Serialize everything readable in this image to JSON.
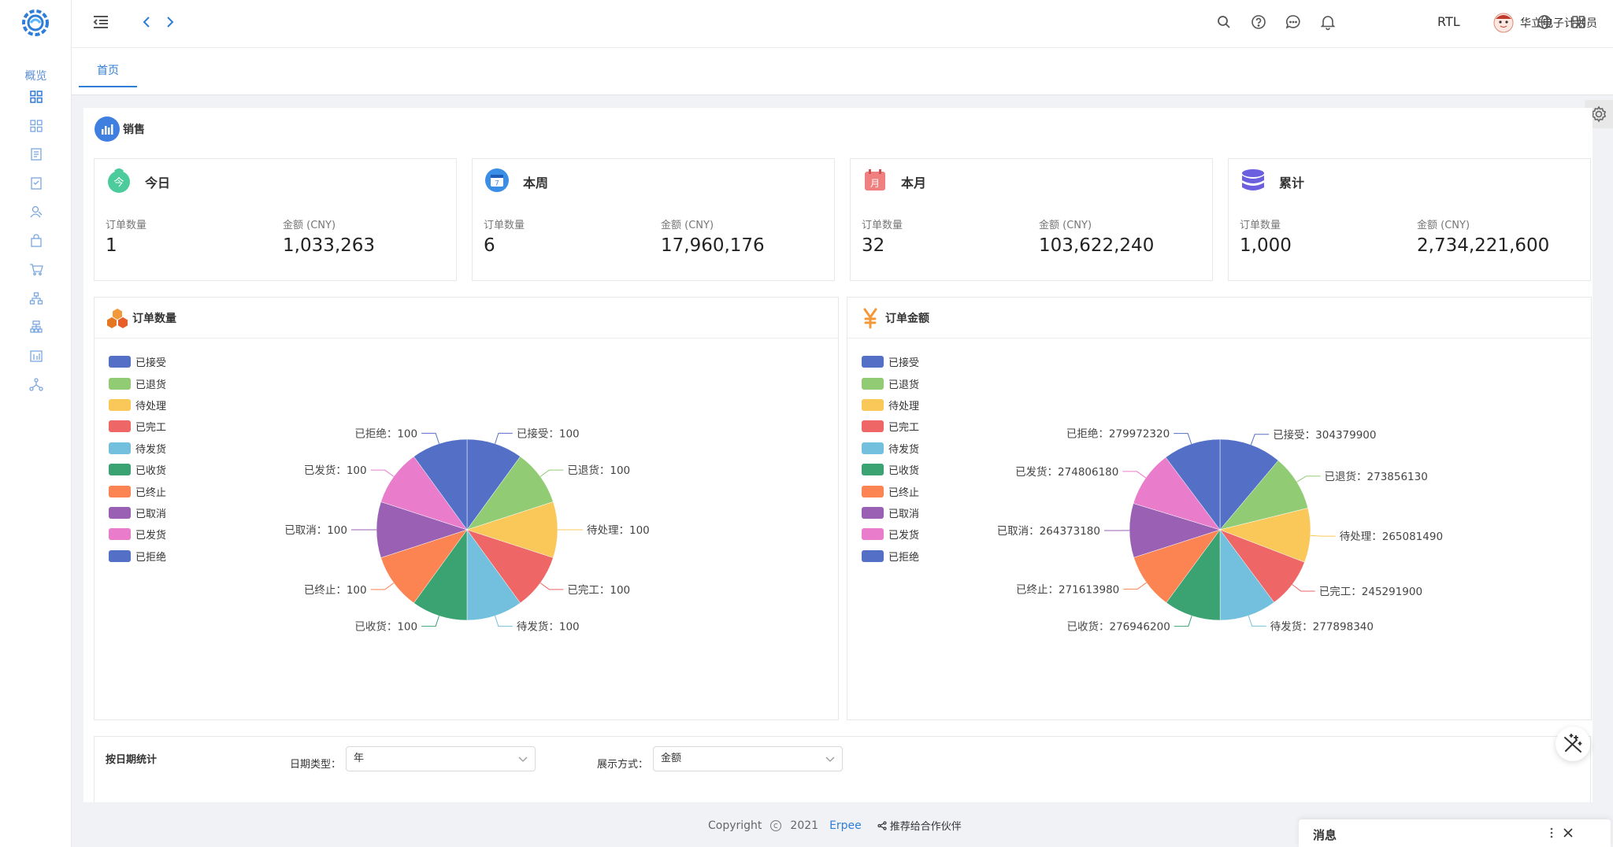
{
  "sidebar": {
    "group_label": "概览",
    "icons": [
      "dashboard-icon",
      "grid-icon",
      "document-icon",
      "report-icon",
      "users-icon",
      "bag-icon",
      "cart-icon",
      "org-chart-icon",
      "hierarchy-icon",
      "calendar-icon",
      "network-icon"
    ]
  },
  "header": {
    "rtl_label": "RTL",
    "user_name": "华立电子计划员"
  },
  "tabs": [
    {
      "label": "首页"
    }
  ],
  "sales": {
    "title": "销售",
    "cards": [
      {
        "title": "今日",
        "orders_label": "订单数量",
        "amount_label": "金额 (CNY)",
        "orders": "1",
        "amount": "1,033,263",
        "icon": "today-icon",
        "color": "#4ccb9c"
      },
      {
        "title": "本周",
        "orders_label": "订单数量",
        "amount_label": "金额 (CNY)",
        "orders": "6",
        "amount": "17,960,176",
        "icon": "week-calendar-icon",
        "color": "#3a8ee6"
      },
      {
        "title": "本月",
        "orders_label": "订单数量",
        "amount_label": "金额 (CNY)",
        "orders": "32",
        "amount": "103,622,240",
        "icon": "month-calendar-icon",
        "color": "#f07f7f"
      },
      {
        "title": "累计",
        "orders_label": "订单数量",
        "amount_label": "金额 (CNY)",
        "orders": "1,000",
        "amount": "2,734,221,600",
        "icon": "database-icon",
        "color": "#6b5fe0"
      }
    ]
  },
  "chart_data": [
    {
      "type": "pie",
      "title": "订单数量",
      "categories": [
        "已接受",
        "已退货",
        "待处理",
        "已完工",
        "待发货",
        "已收货",
        "已终止",
        "已取消",
        "已发货",
        "已拒绝"
      ],
      "values": [
        100,
        100,
        100,
        100,
        100,
        100,
        100,
        100,
        100,
        100
      ],
      "colors": [
        "#5470c6",
        "#91cc75",
        "#fac858",
        "#ee6666",
        "#73c0de",
        "#3ba272",
        "#fc8452",
        "#9a60b4",
        "#ea7ccc",
        "#5470c6"
      ],
      "legend": "left"
    },
    {
      "type": "pie",
      "title": "订单金额",
      "categories": [
        "已接受",
        "已退货",
        "待处理",
        "已完工",
        "待发货",
        "已收货",
        "已终止",
        "已取消",
        "已发货",
        "已拒绝"
      ],
      "values": [
        304379900,
        273856130,
        265081490,
        245291900,
        277898340,
        276946200,
        271613980,
        264373180,
        274806180,
        279972320
      ],
      "colors": [
        "#5470c6",
        "#91cc75",
        "#fac858",
        "#ee6666",
        "#73c0de",
        "#3ba272",
        "#fc8452",
        "#9a60b4",
        "#ea7ccc",
        "#5470c6"
      ],
      "legend": "left"
    }
  ],
  "filters": {
    "title": "按日期统计",
    "date_type_label": "日期类型：",
    "date_type_value": "年",
    "display_label": "展示方式：",
    "display_value": "金额"
  },
  "footer": {
    "copyright": "Copyright",
    "year": "2021",
    "brand": "Erpee",
    "partner": "推荐给合作伙伴"
  },
  "message_panel": {
    "title": "消息"
  }
}
